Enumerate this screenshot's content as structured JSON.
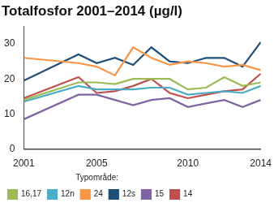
{
  "chart_data": {
    "type": "line",
    "title": "Totalfosfor 2001–2014 (µg/l)",
    "legend_title": "Typområde:",
    "x": [
      2001,
      2004,
      2005,
      2006,
      2007,
      2008,
      2009,
      2010,
      2011,
      2012,
      2013,
      2014
    ],
    "series": [
      {
        "name": "16,17",
        "color": "#9bbb59",
        "values": [
          14,
          19,
          19,
          18.5,
          20,
          20,
          20,
          17,
          17.5,
          20.5,
          18,
          19
        ]
      },
      {
        "name": "12n",
        "color": "#4bacc6",
        "values": [
          13.5,
          18,
          17,
          17,
          17,
          17.5,
          17.5,
          15.5,
          16,
          16.5,
          16,
          18
        ]
      },
      {
        "name": "24",
        "color": "#f79646",
        "values": [
          26,
          24.5,
          23.5,
          21,
          29,
          26,
          24,
          25,
          24.5,
          23.5,
          24,
          22.5
        ]
      },
      {
        "name": "12s",
        "color": "#1f4e79",
        "values": [
          19.5,
          27,
          24.5,
          26,
          24,
          29,
          25,
          24.5,
          26,
          26,
          23.5,
          30.5
        ]
      },
      {
        "name": "15",
        "color": "#8064a2",
        "values": [
          8.5,
          15.5,
          15.5,
          14,
          12.5,
          14,
          14.5,
          12,
          13,
          14,
          12,
          14
        ]
      },
      {
        "name": "14",
        "color": "#c0504d",
        "values": [
          14.5,
          20.5,
          16,
          16.5,
          18,
          20,
          16,
          14.5,
          15.5,
          16.5,
          17,
          21.5
        ]
      }
    ],
    "xlim": [
      2001,
      2014
    ],
    "xticks": [
      2001,
      2005,
      2010,
      2014
    ],
    "ylim": [
      0,
      35
    ],
    "yticks": [
      0,
      10,
      20,
      30
    ],
    "grid": false,
    "legend": "bottom"
  }
}
